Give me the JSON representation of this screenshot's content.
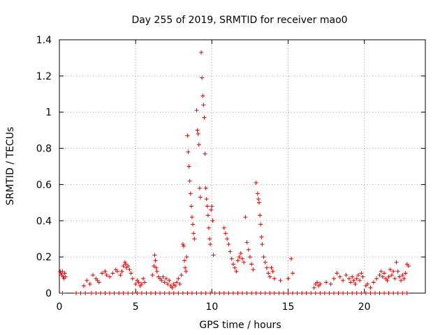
{
  "chart_data": {
    "type": "scatter",
    "title": "Day 255 of 2019, SRMTID for receiver mao0",
    "xlabel": "GPS time / hours",
    "ylabel": "SRMTID / TECUs",
    "xlim": [
      0,
      24
    ],
    "ylim": [
      0,
      1.4
    ],
    "xticks": [
      0,
      5,
      10,
      15,
      20
    ],
    "yticks": [
      0,
      0.2,
      0.4,
      0.6,
      0.8,
      1,
      1.2,
      1.4
    ],
    "xtick_labels": [
      "0",
      "5",
      "10",
      "15",
      "20"
    ],
    "ytick_labels": [
      "0",
      "0.2",
      "0.4",
      "0.6",
      "0.8",
      "1",
      "1.2",
      "1.4"
    ],
    "grid": true,
    "marker": "+",
    "color": "#e00000",
    "series": [
      {
        "name": "SRMTID",
        "points": [
          [
            0.05,
            0.12
          ],
          [
            0.1,
            0.11
          ],
          [
            0.15,
            0.1
          ],
          [
            0.2,
            0.12
          ],
          [
            0.25,
            0.09
          ],
          [
            0.3,
            0.08
          ],
          [
            0.35,
            0.11
          ],
          [
            0.4,
            0.09
          ],
          [
            1.6,
            0.04
          ],
          [
            1.8,
            0.07
          ],
          [
            2.0,
            0.05
          ],
          [
            2.2,
            0.1
          ],
          [
            2.4,
            0.08
          ],
          [
            2.5,
            0.07
          ],
          [
            2.6,
            0.06
          ],
          [
            2.8,
            0.11
          ],
          [
            3.0,
            0.12
          ],
          [
            3.1,
            0.1
          ],
          [
            3.3,
            0.09
          ],
          [
            3.5,
            0.11
          ],
          [
            3.7,
            0.13
          ],
          [
            3.8,
            0.12
          ],
          [
            4.0,
            0.1
          ],
          [
            4.1,
            0.12
          ],
          [
            4.2,
            0.15
          ],
          [
            4.3,
            0.17
          ],
          [
            4.35,
            0.16
          ],
          [
            4.4,
            0.14
          ],
          [
            4.5,
            0.15
          ],
          [
            4.6,
            0.13
          ],
          [
            4.7,
            0.11
          ],
          [
            4.8,
            0.08
          ],
          [
            5.0,
            0.05
          ],
          [
            5.1,
            0.07
          ],
          [
            5.2,
            0.06
          ],
          [
            5.3,
            0.04
          ],
          [
            5.4,
            0.05
          ],
          [
            5.5,
            0.08
          ],
          [
            5.6,
            0.06
          ],
          [
            6.1,
            0.1
          ],
          [
            6.2,
            0.15
          ],
          [
            6.25,
            0.21
          ],
          [
            6.3,
            0.18
          ],
          [
            6.35,
            0.14
          ],
          [
            6.4,
            0.12
          ],
          [
            6.5,
            0.09
          ],
          [
            6.6,
            0.08
          ],
          [
            6.7,
            0.07
          ],
          [
            6.8,
            0.09
          ],
          [
            6.9,
            0.06
          ],
          [
            7.0,
            0.08
          ],
          [
            7.1,
            0.05
          ],
          [
            7.2,
            0.07
          ],
          [
            7.3,
            0.04
          ],
          [
            7.4,
            0.03
          ],
          [
            7.5,
            0.05
          ],
          [
            7.6,
            0.04
          ],
          [
            7.7,
            0.06
          ],
          [
            7.8,
            0.08
          ],
          [
            7.9,
            0.05
          ],
          [
            8.0,
            0.1
          ],
          [
            8.1,
            0.27
          ],
          [
            8.15,
            0.26
          ],
          [
            8.2,
            0.18
          ],
          [
            8.25,
            0.14
          ],
          [
            8.3,
            0.12
          ],
          [
            8.35,
            0.2
          ],
          [
            8.4,
            0.87
          ],
          [
            8.45,
            0.78
          ],
          [
            8.5,
            0.7
          ],
          [
            8.55,
            0.62
          ],
          [
            8.6,
            0.55
          ],
          [
            8.65,
            0.48
          ],
          [
            8.7,
            0.42
          ],
          [
            8.75,
            0.38
          ],
          [
            8.8,
            0.33
          ],
          [
            8.85,
            0.3
          ],
          [
            9.0,
            1.01
          ],
          [
            9.05,
            0.9
          ],
          [
            9.1,
            0.88
          ],
          [
            9.15,
            0.82
          ],
          [
            9.2,
            0.58
          ],
          [
            9.25,
            0.53
          ],
          [
            9.3,
            1.33
          ],
          [
            9.35,
            1.19
          ],
          [
            9.4,
            1.09
          ],
          [
            9.45,
            1.04
          ],
          [
            9.5,
            0.97
          ],
          [
            9.55,
            0.77
          ],
          [
            9.6,
            0.58
          ],
          [
            9.65,
            0.52
          ],
          [
            9.7,
            0.48
          ],
          [
            9.75,
            0.43
          ],
          [
            9.8,
            0.36
          ],
          [
            9.85,
            0.3
          ],
          [
            9.9,
            0.27
          ],
          [
            9.95,
            0.46
          ],
          [
            10.0,
            0.48
          ],
          [
            10.05,
            0.4
          ],
          [
            10.1,
            0.21
          ],
          [
            10.8,
            0.36
          ],
          [
            10.9,
            0.33
          ],
          [
            11.0,
            0.3
          ],
          [
            11.1,
            0.27
          ],
          [
            11.2,
            0.23
          ],
          [
            11.3,
            0.19
          ],
          [
            11.4,
            0.16
          ],
          [
            11.5,
            0.14
          ],
          [
            11.6,
            0.12
          ],
          [
            11.7,
            0.18
          ],
          [
            11.8,
            0.2
          ],
          [
            11.9,
            0.22
          ],
          [
            12.0,
            0.19
          ],
          [
            12.1,
            0.17
          ],
          [
            12.2,
            0.42
          ],
          [
            12.3,
            0.28
          ],
          [
            12.4,
            0.24
          ],
          [
            12.5,
            0.2
          ],
          [
            12.6,
            0.16
          ],
          [
            12.7,
            0.13
          ],
          [
            12.9,
            0.61
          ],
          [
            13.0,
            0.55
          ],
          [
            13.05,
            0.52
          ],
          [
            13.1,
            0.5
          ],
          [
            13.15,
            0.43
          ],
          [
            13.2,
            0.38
          ],
          [
            13.25,
            0.31
          ],
          [
            13.3,
            0.27
          ],
          [
            13.4,
            0.2
          ],
          [
            13.5,
            0.17
          ],
          [
            13.6,
            0.14
          ],
          [
            13.7,
            0.11
          ],
          [
            13.8,
            0.09
          ],
          [
            13.9,
            0.14
          ],
          [
            14.0,
            0.12
          ],
          [
            14.1,
            0.08
          ],
          [
            14.5,
            0.07
          ],
          [
            15.0,
            0.08
          ],
          [
            15.2,
            0.19
          ],
          [
            15.3,
            0.11
          ],
          [
            16.7,
            0.03
          ],
          [
            16.8,
            0.05
          ],
          [
            16.9,
            0.06
          ],
          [
            17.0,
            0.04
          ],
          [
            17.1,
            0.05
          ],
          [
            17.5,
            0.06
          ],
          [
            17.8,
            0.05
          ],
          [
            18.0,
            0.08
          ],
          [
            18.2,
            0.11
          ],
          [
            18.4,
            0.09
          ],
          [
            18.6,
            0.07
          ],
          [
            18.8,
            0.1
          ],
          [
            19.0,
            0.08
          ],
          [
            19.1,
            0.06
          ],
          [
            19.2,
            0.09
          ],
          [
            19.3,
            0.07
          ],
          [
            19.4,
            0.05
          ],
          [
            19.5,
            0.08
          ],
          [
            19.6,
            0.1
          ],
          [
            19.7,
            0.07
          ],
          [
            19.8,
            0.11
          ],
          [
            19.9,
            0.09
          ],
          [
            20.1,
            0.04
          ],
          [
            20.2,
            0.05
          ],
          [
            20.4,
            0.03
          ],
          [
            20.6,
            0.06
          ],
          [
            20.8,
            0.08
          ],
          [
            21.0,
            0.1
          ],
          [
            21.1,
            0.12
          ],
          [
            21.2,
            0.09
          ],
          [
            21.3,
            0.11
          ],
          [
            21.4,
            0.08
          ],
          [
            21.5,
            0.07
          ],
          [
            21.6,
            0.09
          ],
          [
            21.7,
            0.13
          ],
          [
            21.8,
            0.1
          ],
          [
            21.9,
            0.12
          ],
          [
            22.0,
            0.08
          ],
          [
            22.1,
            0.17
          ],
          [
            22.2,
            0.12
          ],
          [
            22.3,
            0.09
          ],
          [
            22.4,
            0.07
          ],
          [
            22.5,
            0.1
          ],
          [
            22.6,
            0.08
          ],
          [
            22.7,
            0.11
          ],
          [
            22.8,
            0.16
          ],
          [
            22.9,
            0.15
          ],
          [
            0.2,
            0.0
          ],
          [
            1.1,
            0.0
          ],
          [
            1.4,
            0.0
          ],
          [
            1.7,
            0.0
          ],
          [
            2.1,
            0.0
          ],
          [
            2.4,
            0.0
          ],
          [
            2.7,
            0.0
          ],
          [
            3.0,
            0.0
          ],
          [
            3.3,
            0.0
          ],
          [
            3.6,
            0.0
          ],
          [
            3.9,
            0.0
          ],
          [
            4.2,
            0.0
          ],
          [
            4.5,
            0.0
          ],
          [
            4.8,
            0.0
          ],
          [
            5.1,
            0.0
          ],
          [
            5.4,
            0.0
          ],
          [
            5.7,
            0.0
          ],
          [
            6.0,
            0.0
          ],
          [
            6.3,
            0.0
          ],
          [
            6.6,
            0.0
          ],
          [
            6.9,
            0.0
          ],
          [
            7.2,
            0.0
          ],
          [
            7.5,
            0.0
          ],
          [
            7.8,
            0.0
          ],
          [
            8.1,
            0.0
          ],
          [
            8.4,
            0.0
          ],
          [
            8.7,
            0.0
          ],
          [
            9.0,
            0.0
          ],
          [
            9.3,
            0.0
          ],
          [
            9.6,
            0.0
          ],
          [
            9.9,
            0.0
          ],
          [
            10.2,
            0.0
          ],
          [
            10.5,
            0.0
          ],
          [
            10.8,
            0.0
          ],
          [
            11.1,
            0.0
          ],
          [
            11.4,
            0.0
          ],
          [
            11.7,
            0.0
          ],
          [
            12.0,
            0.0
          ],
          [
            12.3,
            0.0
          ],
          [
            12.6,
            0.0
          ],
          [
            12.9,
            0.0
          ],
          [
            13.2,
            0.0
          ],
          [
            13.5,
            0.0
          ],
          [
            13.8,
            0.0
          ],
          [
            14.1,
            0.0
          ],
          [
            14.4,
            0.0
          ],
          [
            14.7,
            0.0
          ],
          [
            15.0,
            0.0
          ],
          [
            15.3,
            0.0
          ],
          [
            15.6,
            0.0
          ],
          [
            15.9,
            0.0
          ],
          [
            16.2,
            0.0
          ],
          [
            16.5,
            0.0
          ],
          [
            16.8,
            0.0
          ],
          [
            17.1,
            0.0
          ],
          [
            17.4,
            0.0
          ],
          [
            17.7,
            0.0
          ],
          [
            18.0,
            0.0
          ],
          [
            18.3,
            0.0
          ],
          [
            18.6,
            0.0
          ],
          [
            18.9,
            0.0
          ],
          [
            19.2,
            0.0
          ],
          [
            19.5,
            0.0
          ],
          [
            19.8,
            0.0
          ],
          [
            20.1,
            0.0
          ],
          [
            20.4,
            0.0
          ],
          [
            20.7,
            0.0
          ],
          [
            21.0,
            0.0
          ],
          [
            21.3,
            0.0
          ],
          [
            21.6,
            0.0
          ],
          [
            21.9,
            0.0
          ],
          [
            22.2,
            0.0
          ],
          [
            22.5,
            0.0
          ],
          [
            22.8,
            0.0
          ]
        ]
      }
    ]
  }
}
